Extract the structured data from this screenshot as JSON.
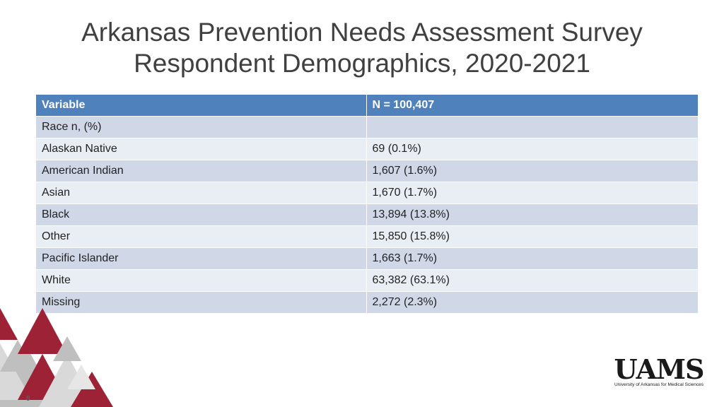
{
  "slide": {
    "title_line1": "Arkansas Prevention Needs Assessment Survey",
    "title_line2": "Respondent Demographics, 2020-2021",
    "page_number": "8"
  },
  "table": {
    "headers": [
      "Variable",
      "N = 100,407"
    ],
    "section_row": {
      "label": "Race n, (%)",
      "value": ""
    },
    "rows": [
      {
        "label": "Alaskan Native",
        "value": "69 (0.1%)"
      },
      {
        "label": "American Indian",
        "value": "1,607 (1.6%)"
      },
      {
        "label": "Asian",
        "value": "1,670 (1.7%)"
      },
      {
        "label": "Black",
        "value": "13,894 (13.8%)"
      },
      {
        "label": "Other",
        "value": "15,850 (15.8%)"
      },
      {
        "label": "Pacific Islander",
        "value": "1,663 (1.7%)"
      },
      {
        "label": "White",
        "value": "63,382 (63.1%)"
      },
      {
        "label": "Missing",
        "value": "2,272 (2.3%)"
      }
    ]
  },
  "logo": {
    "name": "UAMS",
    "subtitle": "University of Arkansas for Medical Sciences"
  },
  "colors": {
    "header_bg": "#4f81bd",
    "row_band_dark": "#d0d8e8",
    "row_band_light": "#e9edf4",
    "accent_red": "#9d2235",
    "accent_gray": "#bfbfbf"
  }
}
